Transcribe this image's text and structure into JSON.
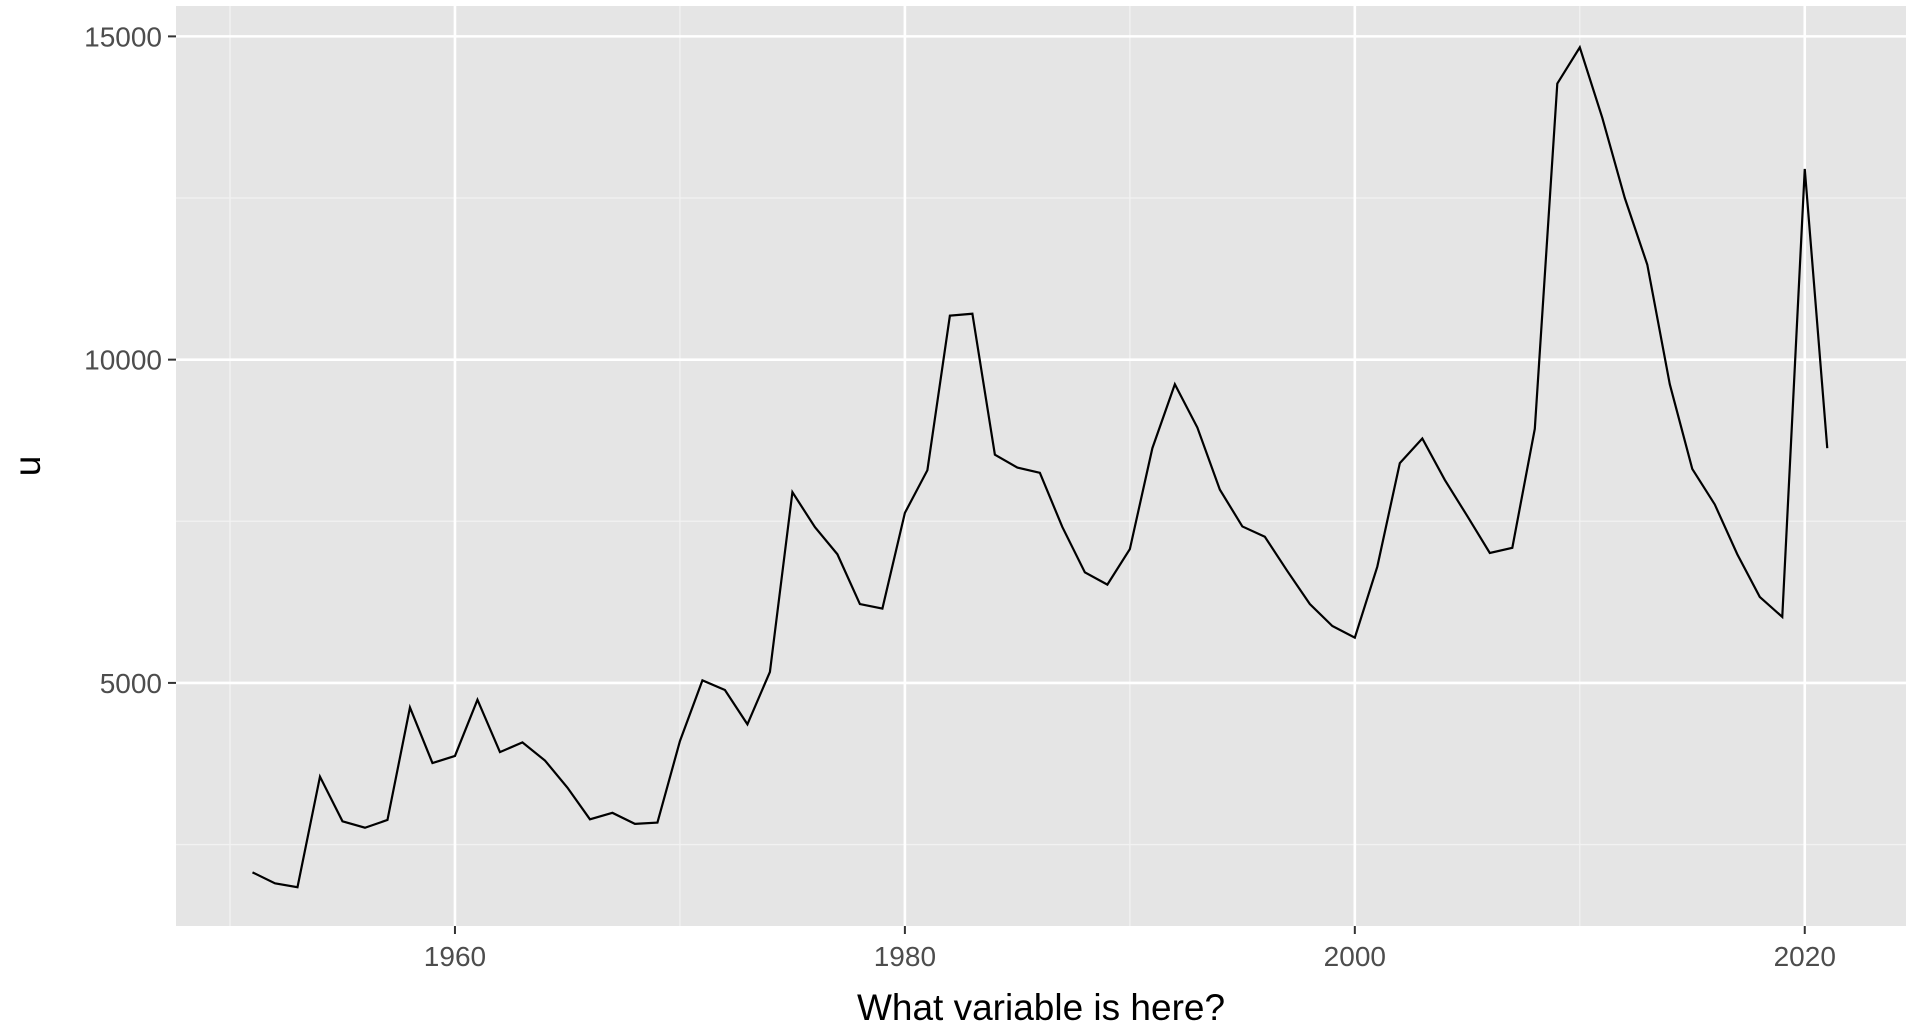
{
  "chart_data": {
    "type": "line",
    "x_label": "What variable is here?",
    "y_label": "u",
    "x": [
      1951,
      1952,
      1953,
      1954,
      1955,
      1956,
      1957,
      1958,
      1959,
      1960,
      1961,
      1962,
      1963,
      1964,
      1965,
      1966,
      1967,
      1968,
      1969,
      1970,
      1971,
      1972,
      1973,
      1974,
      1975,
      1976,
      1977,
      1978,
      1979,
      1980,
      1981,
      1982,
      1983,
      1984,
      1985,
      1986,
      1987,
      1988,
      1989,
      1990,
      1991,
      1992,
      1993,
      1994,
      1995,
      1996,
      1997,
      1998,
      1999,
      2000,
      2001,
      2002,
      2003,
      2004,
      2005,
      2006,
      2007,
      2008,
      2009,
      2010,
      2011,
      2012,
      2013,
      2014,
      2015,
      2016,
      2017,
      2018,
      2019,
      2020,
      2021
    ],
    "series": [
      {
        "name": "u",
        "color": "#000000",
        "values": [
          2070,
          1900,
          1840,
          3550,
          2860,
          2760,
          2880,
          4620,
          3760,
          3870,
          4740,
          3930,
          4080,
          3800,
          3380,
          2890,
          2990,
          2820,
          2840,
          4100,
          5040,
          4890,
          4360,
          5170,
          7950,
          7410,
          6990,
          6220,
          6150,
          7630,
          8290,
          10680,
          10710,
          8530,
          8330,
          8250,
          7410,
          6710,
          6520,
          7070,
          8630,
          9620,
          8950,
          7990,
          7420,
          7260,
          6730,
          6220,
          5880,
          5700,
          6800,
          8400,
          8780,
          8140,
          7580,
          7010,
          7090,
          8930,
          14270,
          14830,
          13740,
          12500,
          11470,
          9620,
          8310,
          7760,
          6990,
          6330,
          6020,
          12950,
          8630
        ]
      }
    ],
    "xlim": [
      1947.6,
      2024.5
    ],
    "xticks": [
      1960,
      1980,
      2000,
      2020
    ],
    "ylim": [
      1240,
      15470
    ],
    "yticks": [
      5000,
      10000,
      15000
    ],
    "grid": true
  }
}
